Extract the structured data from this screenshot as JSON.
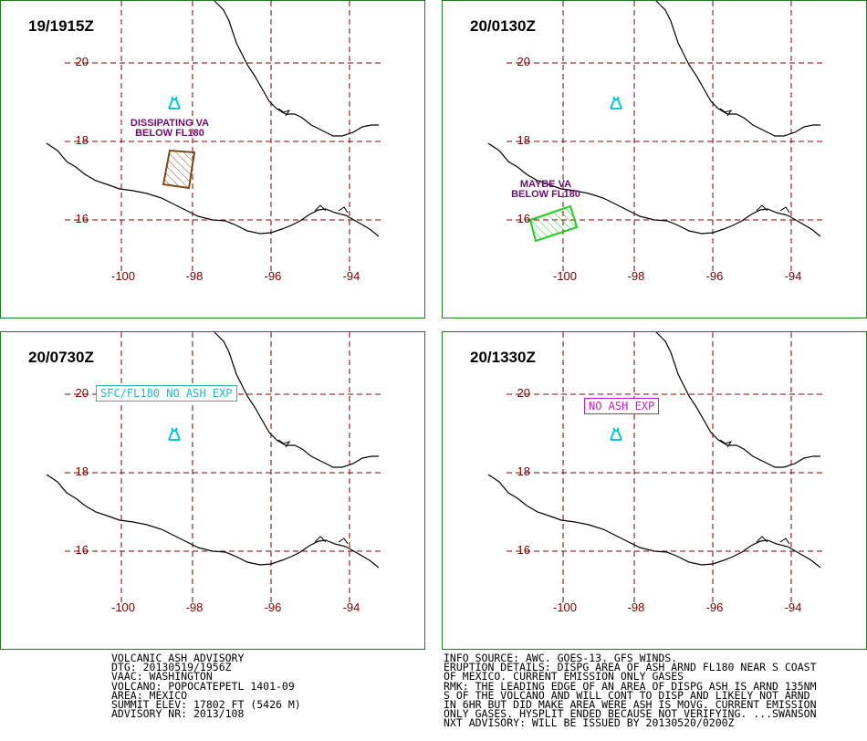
{
  "panels": [
    {
      "time": "19/1915Z",
      "note_lines": [
        "DISSIPATING VA",
        "BELOW FL180"
      ]
    },
    {
      "time": "20/0130Z",
      "note_lines": [
        "MAYBE VA",
        "BELOW FL180"
      ]
    },
    {
      "time": "20/0730Z",
      "box_text": "SFC/FL180 NO ASH EXP"
    },
    {
      "time": "20/1330Z",
      "box_text": "NO ASH EXP"
    }
  ],
  "axes": {
    "lat_labels": [
      "20",
      "18",
      "16"
    ],
    "lon_labels": [
      "-100",
      "-98",
      "-96",
      "-94"
    ]
  },
  "colors": {
    "panel_border": "#1f7a1f",
    "grid": "#7a0000",
    "coast": "#000000",
    "volcano": "#00c8d8",
    "ash_polygon_1": "#7a4a1a",
    "ash_polygon_2": "#22cc22",
    "note_text": "#6a0f6a",
    "box_3": "#22b8c8",
    "box_4": "#c020c0"
  },
  "footer": {
    "left": [
      "VOLCANIC ASH ADVISORY",
      "DTG: 20130519/1956Z",
      "VAAC: WASHINGTON",
      "VOLCANO: POPOCATEPETL 1401-09",
      "AREA: MEXICO",
      "SUMMIT ELEV: 17802 FT (5426 M)",
      "ADVISORY NR: 2013/108"
    ],
    "right": [
      "INFO SOURCE: AWC. GOES-13. GFS WINDS.",
      "ERUPTION DETAILS: DISPG AREA OF ASH ARND FL180 NEAR S COAST",
      "OF MEXICO. CURRENT EMISSION ONLY GASES",
      "RMK: THE LEADING EDGE OF AN AREA OF DISPG ASH IS ARND 135NM",
      "S OF THE VOLCANO AND WILL CONT TO DISP AND LIKELY NOT ARND",
      "IN 6HR BUT DID MAKE AREA WERE ASH IS MOVG. CURRENT EMISSION",
      "ONLY GASES. HYSPLIT ENDED BECAUSE NOT VERIFYING. ...SWANSON",
      "NXT ADVISORY: WILL BE ISSUED BY 20130520/0200Z"
    ]
  }
}
